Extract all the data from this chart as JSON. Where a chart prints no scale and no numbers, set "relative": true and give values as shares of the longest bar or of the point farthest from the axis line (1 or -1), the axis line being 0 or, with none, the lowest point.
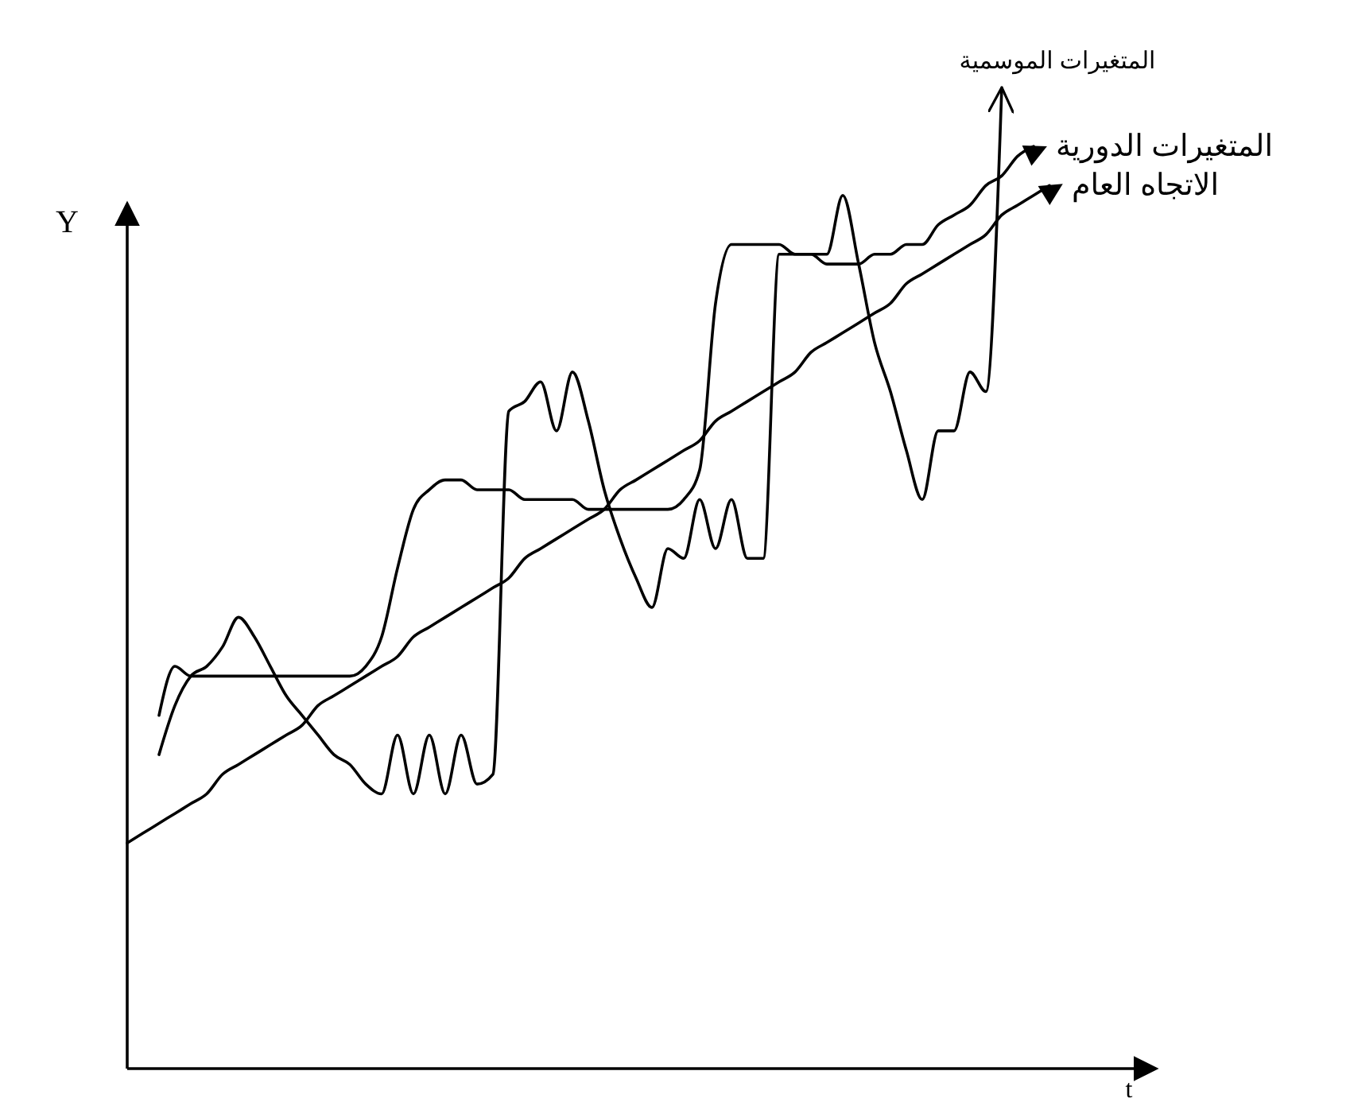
{
  "chart_data": {
    "type": "line",
    "relative": true,
    "xlabel": "t",
    "ylabel": "Y",
    "line_style": "solid",
    "categories": [
      null,
      null,
      null,
      null,
      null,
      null,
      null,
      null,
      null,
      null,
      null,
      null,
      null,
      null,
      null,
      null,
      null,
      null,
      null,
      null,
      null,
      null,
      null,
      null,
      null,
      null,
      null,
      null,
      null,
      null,
      null,
      null,
      null,
      null,
      null,
      null,
      null,
      null,
      null,
      null,
      null,
      null,
      null,
      null,
      null,
      null,
      null,
      null,
      null,
      null,
      null,
      null,
      null,
      null,
      null,
      null,
      null,
      null,
      null,
      null,
      null,
      null,
      null,
      null,
      null
    ],
    "series": [
      {
        "name": "الاتجاه العام",
        "color": "#000000",
        "values": [
          0.23,
          0.24,
          0.25,
          0.26,
          0.27,
          0.28,
          0.3,
          0.31,
          0.32,
          0.33,
          0.34,
          0.35,
          0.37,
          0.38,
          0.39,
          0.4,
          0.41,
          0.42,
          0.44,
          0.45,
          0.46,
          0.47,
          0.48,
          0.49,
          0.5,
          0.52,
          0.53,
          0.54,
          0.55,
          0.56,
          0.57,
          0.59,
          0.6,
          0.61,
          0.62,
          0.63,
          0.64,
          0.66,
          0.67,
          0.68,
          0.69,
          0.7,
          0.71,
          0.73,
          0.74,
          0.75,
          0.76,
          0.77,
          0.78,
          0.8,
          0.81,
          0.82,
          0.83,
          0.84,
          0.85,
          0.87,
          0.88,
          0.89,
          0.9,
          null,
          null,
          null,
          null,
          null,
          null
        ]
      },
      {
        "name": "المتغيرات الدورية",
        "color": "#000000",
        "values": [
          null,
          null,
          0.36,
          0.41,
          0.4,
          0.4,
          0.4,
          0.4,
          0.4,
          0.4,
          0.4,
          0.4,
          0.4,
          0.4,
          0.4,
          0.41,
          0.44,
          0.51,
          0.57,
          0.59,
          0.6,
          0.6,
          0.59,
          0.59,
          0.59,
          0.58,
          0.58,
          0.58,
          0.58,
          0.57,
          0.57,
          0.57,
          0.57,
          0.57,
          0.57,
          0.58,
          0.61,
          0.78,
          0.84,
          0.84,
          0.84,
          0.84,
          0.83,
          0.83,
          0.82,
          0.82,
          0.82,
          0.83,
          0.83,
          0.84,
          0.84,
          0.86,
          0.87,
          0.88,
          0.9,
          0.91,
          0.93,
          0.94,
          null,
          null,
          null,
          null,
          null,
          null,
          null
        ]
      },
      {
        "name": "المتغيرات الموسمية",
        "color": "#000000",
        "values": [
          null,
          null,
          0.32,
          0.37,
          0.4,
          0.41,
          0.43,
          0.46,
          0.44,
          0.41,
          0.38,
          0.36,
          0.34,
          0.32,
          0.31,
          0.29,
          0.28,
          0.34,
          0.28,
          0.34,
          0.28,
          0.34,
          0.29,
          0.3,
          0.67,
          0.68,
          0.7,
          0.65,
          0.71,
          0.66,
          0.59,
          0.54,
          0.5,
          0.47,
          0.53,
          0.52,
          0.58,
          0.53,
          0.58,
          0.52,
          0.52,
          0.83,
          0.83,
          0.83,
          0.83,
          0.89,
          0.82,
          0.74,
          0.69,
          0.63,
          0.58,
          0.65,
          0.65,
          0.71,
          0.69,
          1,
          null,
          null,
          null,
          null,
          null,
          null,
          null,
          null,
          null
        ]
      }
    ]
  }
}
